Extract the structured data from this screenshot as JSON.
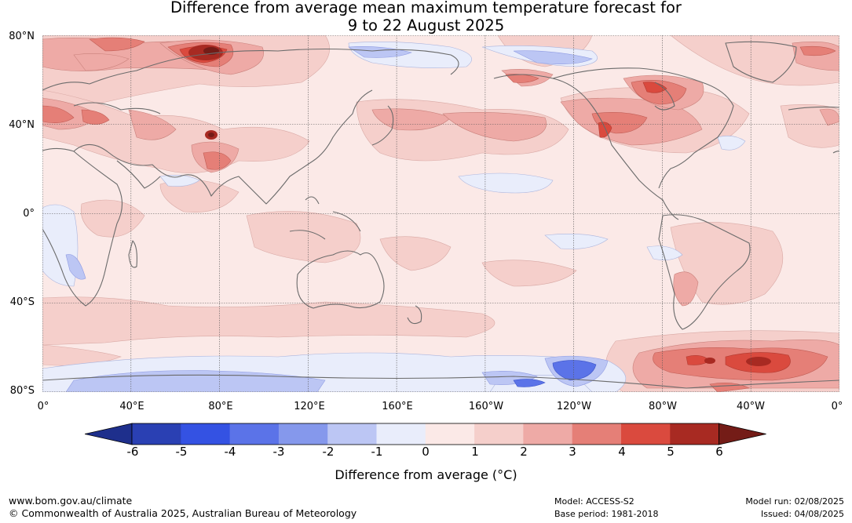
{
  "title": {
    "line1": "Difference from average mean maximum temperature forecast for",
    "line2": "9 to 22 August 2025"
  },
  "map": {
    "lat_labels": [
      "80°N",
      "40°N",
      "0°",
      "40°S",
      "80°S"
    ],
    "lon_labels": [
      "0°",
      "40°E",
      "80°E",
      "120°E",
      "160°E",
      "160°W",
      "120°W",
      "80°W",
      "40°W",
      "0°"
    ],
    "projection": "equirectangular, 0° to 360° longitude, 80°S to 80°N",
    "anomaly_highlights": [
      {
        "region": "Western Siberia",
        "value_c": 6
      },
      {
        "region": "Northern India / Pakistan",
        "value_c": 6
      },
      {
        "region": "Central Asia",
        "value_c": 3
      },
      {
        "region": "Southern Europe",
        "value_c": 4
      },
      {
        "region": "Central United States",
        "value_c": 4
      },
      {
        "region": "Hudson Bay / Eastern Canada",
        "value_c": 4
      },
      {
        "region": "Alaska",
        "value_c": 4
      },
      {
        "region": "Southern Ocean (south Atlantic sector)",
        "value_c": 5
      },
      {
        "region": "Southern Ocean (Pacific sector)",
        "value_c": -4
      },
      {
        "region": "Antarctic coast (Indian Ocean sector)",
        "value_c": -2
      },
      {
        "region": "East Siberian Sea",
        "value_c": -2
      }
    ]
  },
  "colorbar": {
    "ticks": [
      "-6",
      "-5",
      "-4",
      "-3",
      "-2",
      "-1",
      "0",
      "1",
      "2",
      "3",
      "4",
      "5",
      "6"
    ],
    "colors": [
      "#1e2f8c",
      "#2a40b3",
      "#3452e3",
      "#5b73e8",
      "#8598ec",
      "#bcc6f4",
      "#e9edfb",
      "#fbe9e7",
      "#f5cfcb",
      "#eeaaa6",
      "#e57f77",
      "#da4a3e",
      "#a82a22",
      "#741c17"
    ],
    "label": "Difference from average (°C)"
  },
  "footer": {
    "url": "www.bom.gov.au/climate",
    "copyright": "© Commonwealth of Australia 2025, Australian Bureau of Meteorology",
    "model": "Model: ACCESS-S2",
    "base_period": "Base period: 1981-2018",
    "model_run": "Model run: 02/08/2025",
    "issued": "Issued: 04/08/2025"
  }
}
